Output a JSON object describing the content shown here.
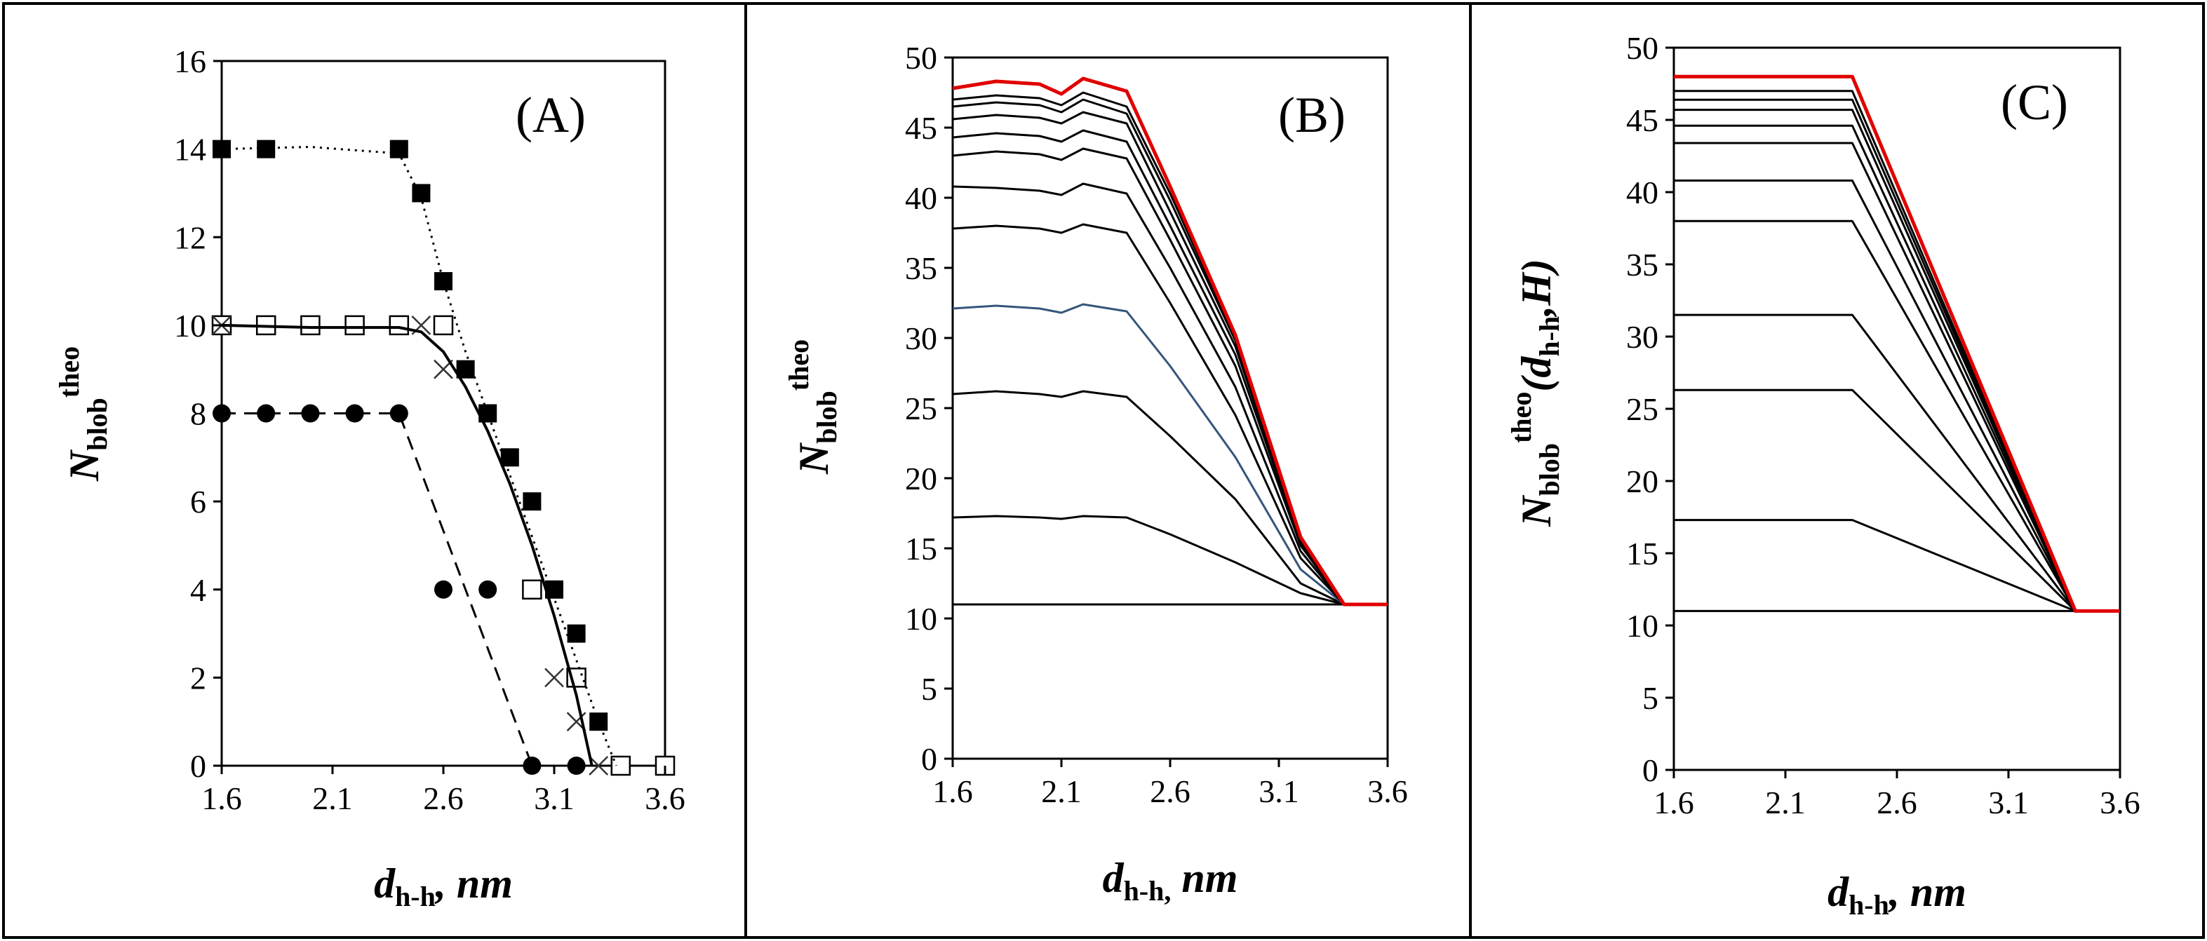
{
  "chart_data": [
    {
      "panel_label": "(A)",
      "type": "line",
      "xlabel_main": "d",
      "xlabel_sub": "h-h",
      "xlabel_unit": ", nm",
      "ylabel_main": "N",
      "ylabel_sub": "blob",
      "ylabel_sup": "theo",
      "x_ticks": [
        "1.6",
        "2.1",
        "2.6",
        "3.1",
        "3.6"
      ],
      "y_ticks": [
        "0",
        "2",
        "4",
        "6",
        "8",
        "10",
        "12",
        "14",
        "16"
      ],
      "xlim": [
        1.6,
        3.6
      ],
      "ylim": [
        0,
        16
      ],
      "series": [
        {
          "name": "filled squares",
          "marker": "filled-square",
          "x": [
            1.6,
            1.8,
            2.4,
            2.5,
            2.6,
            2.7,
            2.8,
            2.9,
            3.0,
            3.1,
            3.2,
            3.3,
            3.4,
            3.6
          ],
          "y": [
            14,
            14,
            14,
            13,
            11,
            9,
            8,
            7,
            6,
            4,
            3,
            1,
            0,
            0
          ]
        },
        {
          "name": "open squares",
          "marker": "open-square",
          "x": [
            1.6,
            1.8,
            2.0,
            2.2,
            2.4,
            2.6,
            3.0,
            3.2,
            3.4,
            3.6
          ],
          "y": [
            10,
            10,
            10,
            10,
            10,
            10,
            4,
            2,
            0,
            0
          ]
        },
        {
          "name": "crosses",
          "marker": "cross",
          "x": [
            1.6,
            2.5,
            2.6,
            3.1,
            3.2,
            3.3
          ],
          "y": [
            10,
            10,
            9,
            2,
            1,
            0
          ]
        },
        {
          "name": "filled circles",
          "marker": "filled-circle",
          "x": [
            1.6,
            1.8,
            2.0,
            2.2,
            2.4,
            2.6,
            2.8,
            3.0,
            3.2
          ],
          "y": [
            8,
            8,
            8,
            8,
            8,
            4,
            4,
            0,
            0
          ]
        },
        {
          "name": "dotted fit",
          "style": "dotted",
          "x": [
            1.6,
            2.0,
            2.4,
            2.5,
            2.6,
            2.7,
            2.8,
            2.9,
            3.0,
            3.1,
            3.2,
            3.3,
            3.38
          ],
          "y": [
            14,
            14.05,
            13.9,
            12.9,
            11.0,
            9.4,
            8.0,
            6.6,
            5.2,
            3.8,
            2.4,
            1.0,
            0
          ]
        },
        {
          "name": "solid fit",
          "style": "solid",
          "x": [
            1.6,
            2.0,
            2.4,
            2.5,
            2.6,
            2.7,
            2.8,
            2.9,
            3.0,
            3.1,
            3.2,
            3.27
          ],
          "y": [
            10,
            9.95,
            9.95,
            9.85,
            9.4,
            8.6,
            7.6,
            6.4,
            5.0,
            3.4,
            1.6,
            0
          ]
        },
        {
          "name": "dashed fit",
          "style": "dashed",
          "x": [
            1.6,
            2.4,
            3.0
          ],
          "y": [
            8,
            8,
            0
          ]
        }
      ]
    },
    {
      "panel_label": "(B)",
      "type": "line",
      "xlabel_main": "d",
      "xlabel_sub": "h-h,",
      "xlabel_unit": " nm",
      "ylabel_main": "N",
      "ylabel_sub": "blob",
      "ylabel_sup": "theo",
      "x_ticks": [
        "1.6",
        "2.1",
        "2.6",
        "3.1",
        "3.6"
      ],
      "y_ticks": [
        "0",
        "5",
        "10",
        "15",
        "20",
        "25",
        "30",
        "35",
        "40",
        "45",
        "50"
      ],
      "xlim": [
        1.6,
        3.6
      ],
      "ylim": [
        0,
        50
      ],
      "x": [
        1.6,
        1.8,
        2.0,
        2.1,
        2.2,
        2.4,
        2.6,
        2.9,
        3.2,
        3.4,
        3.6
      ],
      "series": [
        {
          "name": "curve 1",
          "color": "#000000",
          "y": [
            11,
            11,
            11,
            11,
            11,
            11,
            11,
            11,
            11,
            11,
            11
          ]
        },
        {
          "name": "curve 2",
          "color": "#000000",
          "y": [
            17.2,
            17.3,
            17.2,
            17.1,
            17.3,
            17.2,
            16.0,
            14.0,
            11.8,
            11,
            11
          ]
        },
        {
          "name": "curve 3",
          "color": "#000000",
          "y": [
            26.0,
            26.2,
            26.0,
            25.8,
            26.2,
            25.8,
            23.0,
            18.5,
            12.5,
            11,
            11
          ]
        },
        {
          "name": "curve 4",
          "color": "#35557a",
          "y": [
            32.1,
            32.3,
            32.1,
            31.8,
            32.4,
            31.9,
            28.0,
            21.5,
            13.5,
            11,
            11
          ]
        },
        {
          "name": "curve 5",
          "color": "#000000",
          "y": [
            37.8,
            38.0,
            37.8,
            37.5,
            38.1,
            37.5,
            32.5,
            24.5,
            14.3,
            11,
            11
          ]
        },
        {
          "name": "curve 6",
          "color": "#000000",
          "y": [
            40.8,
            40.7,
            40.5,
            40.2,
            41.0,
            40.3,
            35.0,
            26.5,
            14.8,
            11,
            11
          ]
        },
        {
          "name": "curve 7",
          "color": "#000000",
          "y": [
            43.0,
            43.3,
            43.1,
            42.7,
            43.5,
            42.8,
            37.0,
            28.0,
            15.2,
            11,
            11
          ]
        },
        {
          "name": "curve 8",
          "color": "#000000",
          "y": [
            44.3,
            44.6,
            44.4,
            44.0,
            44.8,
            44.0,
            38.0,
            28.8,
            15.4,
            11,
            11
          ]
        },
        {
          "name": "curve 9",
          "color": "#000000",
          "y": [
            45.6,
            45.9,
            45.7,
            45.3,
            46.1,
            45.3,
            39.0,
            29.4,
            15.5,
            11,
            11
          ]
        },
        {
          "name": "curve 10",
          "color": "#000000",
          "y": [
            46.5,
            46.8,
            46.6,
            46.1,
            47.0,
            46.0,
            39.8,
            29.8,
            15.6,
            11,
            11
          ]
        },
        {
          "name": "curve 11",
          "color": "#000000",
          "y": [
            47.0,
            47.3,
            47.1,
            46.6,
            47.5,
            46.5,
            40.3,
            30.0,
            15.7,
            11,
            11
          ]
        },
        {
          "name": "curve 12",
          "color": "#e00000",
          "y": [
            47.8,
            48.3,
            48.1,
            47.4,
            48.5,
            47.6,
            40.8,
            30.2,
            15.8,
            11,
            11
          ]
        }
      ]
    },
    {
      "panel_label": "(C)",
      "type": "line",
      "xlabel_main": "d",
      "xlabel_sub": "h-h",
      "xlabel_unit": ", nm",
      "ylabel_main": "N",
      "ylabel_sub": "blob",
      "ylabel_sup": "theo",
      "ylabel_args_open": "(",
      "ylabel_args_d": "d",
      "ylabel_args_sub": "h-h",
      "ylabel_args_rest": ",H)",
      "x_ticks": [
        "1.6",
        "2.1",
        "2.6",
        "3.1",
        "3.6"
      ],
      "y_ticks": [
        "0",
        "5",
        "10",
        "15",
        "20",
        "25",
        "30",
        "35",
        "40",
        "45",
        "50"
      ],
      "xlim": [
        1.6,
        3.6
      ],
      "ylim": [
        0,
        50
      ],
      "x": [
        1.6,
        2.4,
        3.4,
        3.6
      ],
      "series": [
        {
          "name": "curve 1",
          "color": "#000000",
          "y": [
            11,
            11,
            11,
            11
          ]
        },
        {
          "name": "curve 2",
          "color": "#000000",
          "y": [
            17.3,
            17.3,
            11,
            11
          ]
        },
        {
          "name": "curve 3",
          "color": "#000000",
          "y": [
            26.3,
            26.3,
            11,
            11
          ]
        },
        {
          "name": "curve 4",
          "color": "#000000",
          "y": [
            31.5,
            31.5,
            11,
            11
          ]
        },
        {
          "name": "curve 5",
          "color": "#000000",
          "y": [
            38.0,
            38.0,
            11,
            11
          ]
        },
        {
          "name": "curve 6",
          "color": "#000000",
          "y": [
            40.8,
            40.8,
            11,
            11
          ]
        },
        {
          "name": "curve 7",
          "color": "#000000",
          "y": [
            43.4,
            43.4,
            11,
            11
          ]
        },
        {
          "name": "curve 8",
          "color": "#000000",
          "y": [
            44.6,
            44.6,
            11,
            11
          ]
        },
        {
          "name": "curve 9",
          "color": "#000000",
          "y": [
            45.7,
            45.7,
            11,
            11
          ]
        },
        {
          "name": "curve 10",
          "color": "#000000",
          "y": [
            46.4,
            46.4,
            11,
            11
          ]
        },
        {
          "name": "curve 11",
          "color": "#000000",
          "y": [
            47.0,
            47.0,
            11,
            11
          ]
        },
        {
          "name": "curve 12",
          "color": "#e00000",
          "y": [
            48.0,
            48.0,
            11,
            11
          ]
        }
      ]
    }
  ]
}
